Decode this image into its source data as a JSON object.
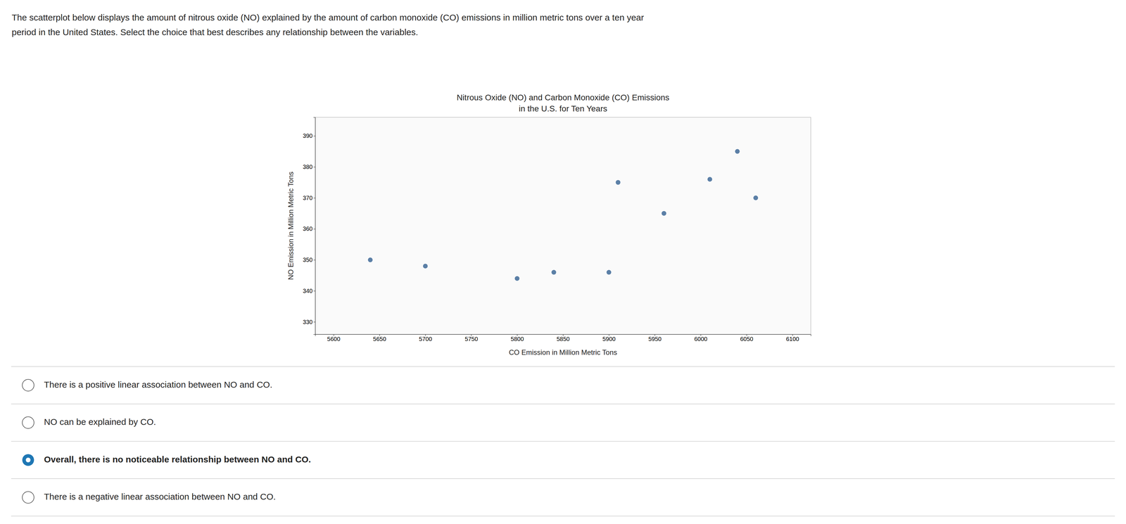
{
  "header": [
    "The scatterplot below displays the amount of nitrous oxide (NO) explained by the amount of carbon monoxide (CO) emissions in million metric tons over a ten year",
    "period in the United States. Select the choice that best describes any relationship between the variables."
  ],
  "chart_data": {
    "type": "scatter",
    "title": "Nitrous Oxide (NO) and Carbon Monoxide (CO) Emissions",
    "subtitle": "in the U.S. for Ten Years",
    "xlabel": "CO Emission in Million Metric Tons",
    "ylabel": "NO Emission in Million Metric Tons",
    "x": [
      5640,
      5700,
      5800,
      5840,
      5900,
      5910,
      5960,
      6010,
      6040,
      6060
    ],
    "values": [
      350,
      348,
      344,
      346,
      346,
      375,
      365,
      376,
      385,
      370
    ],
    "color": "#5b7fa6",
    "xlim": [
      5580,
      6120
    ],
    "ylim": [
      326,
      396
    ],
    "xticks": [
      5600,
      5650,
      5700,
      5750,
      5800,
      5850,
      5900,
      5950,
      6000,
      6050,
      6100
    ],
    "yticks": [
      330,
      340,
      350,
      360,
      370,
      380,
      390
    ],
    "grid": false
  },
  "choices": [
    {
      "text": "There is a positive linear association between NO and CO.",
      "selected": false
    },
    {
      "text": "NO can be explained by CO.",
      "selected": false
    },
    {
      "text": "Overall, there is no noticeable relationship between NO and CO.",
      "selected": true
    },
    {
      "text": "There is a negative linear association between NO and CO.",
      "selected": false
    }
  ]
}
